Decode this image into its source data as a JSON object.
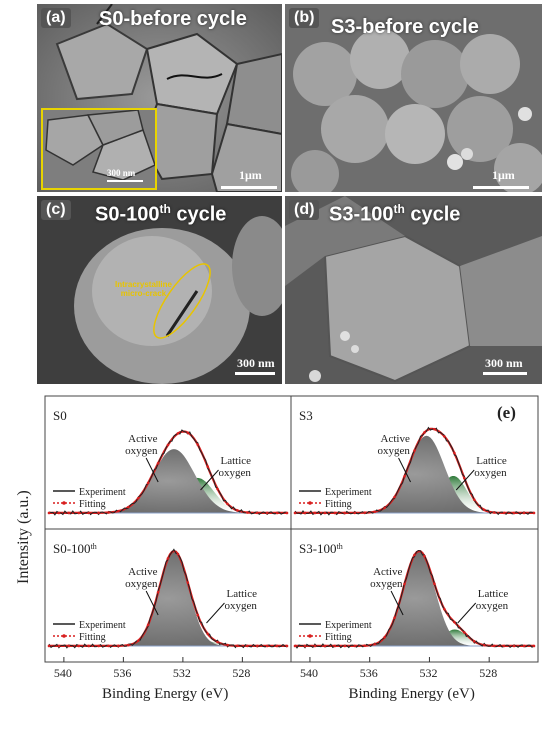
{
  "panels": {
    "a": {
      "tag": "(a)",
      "title": "S0-before cycle",
      "scale": "1μm",
      "inset_scale": "300 nm"
    },
    "b": {
      "tag": "(b)",
      "title": "S3-before cycle",
      "scale": "1μm"
    },
    "c": {
      "tag": "(c)",
      "title_main": "S0-100",
      "title_sup": "th",
      "title_end": " cycle",
      "scale": "300 nm",
      "annotation_line1": "Intracrystalline",
      "annotation_line2": "micro-crack"
    },
    "d": {
      "tag": "(d)",
      "title_main": "S3-100",
      "title_sup": "th",
      "title_end": " cycle",
      "scale": "300 nm"
    }
  },
  "colors": {
    "experiment": "#222222",
    "fitting": "#d81e1e",
    "active_peak": "#f2e200",
    "lattice_peak": "#2f7a3a",
    "inset_border": "#e8d400"
  },
  "chart_data": {
    "type": "line",
    "panel_label": "(e)",
    "ylabel": "Intensity (a.u.)",
    "xlabel": "Binding Energy (eV)",
    "xlim": [
      541,
      525
    ],
    "x_reversed": true,
    "x_ticks": [
      540,
      536,
      532,
      528
    ],
    "legend": [
      "Experiment",
      "Fitting"
    ],
    "subplots": [
      {
        "name": "S0",
        "name_sup": "",
        "active_center": 532.6,
        "active_height": 0.62,
        "active_width": 1.4,
        "lattice_center": 531.0,
        "lattice_height": 0.34,
        "lattice_width": 1.1,
        "label_active_1": "Active",
        "label_active_2": "oxygen",
        "label_lattice_1": "Lattice",
        "label_lattice_2": "oxygen"
      },
      {
        "name": "S3",
        "name_sup": "",
        "active_center": 532.2,
        "active_height": 0.75,
        "active_width": 1.2,
        "lattice_center": 530.4,
        "lattice_height": 0.36,
        "lattice_width": 0.9,
        "label_active_1": "Active",
        "label_active_2": "oxygen",
        "label_lattice_1": "Lattice",
        "label_lattice_2": "oxygen"
      },
      {
        "name": "S0-100",
        "name_sup": "th",
        "active_center": 532.6,
        "active_height": 0.92,
        "active_width": 1.0,
        "lattice_center": 530.6,
        "lattice_height": 0.05,
        "lattice_width": 0.8,
        "label_active_1": "Active",
        "label_active_2": "oxygen",
        "label_lattice_1": "Lattice",
        "label_lattice_2": "oxygen"
      },
      {
        "name": "S3-100",
        "name_sup": "th",
        "active_center": 532.7,
        "active_height": 0.92,
        "active_width": 1.05,
        "lattice_center": 530.3,
        "lattice_height": 0.16,
        "lattice_width": 0.8,
        "label_active_1": "Active",
        "label_active_2": "oxygen",
        "label_lattice_1": "Lattice",
        "label_lattice_2": "oxygen"
      }
    ]
  }
}
